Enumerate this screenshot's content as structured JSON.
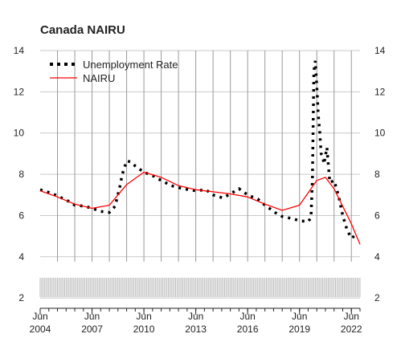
{
  "chart_data": {
    "type": "line",
    "title": "Canada NAIRU",
    "xlabel": "",
    "ylabel": "",
    "y_ticks": [
      "2",
      "4",
      "6",
      "8",
      "10",
      "12",
      "14"
    ],
    "x_ticks": [
      {
        "month": "Jun",
        "year": "2004"
      },
      {
        "month": "Jun",
        "year": "2007"
      },
      {
        "month": "Jun",
        "year": "2010"
      },
      {
        "month": "Jun",
        "year": "2013"
      },
      {
        "month": "Jun",
        "year": "2016"
      },
      {
        "month": "Jun",
        "year": "2019"
      },
      {
        "month": "Jun",
        "year": "2022"
      }
    ],
    "xlim": [
      "2004-06",
      "2022-12"
    ],
    "ylim": [
      1.5,
      14
    ],
    "grid": true,
    "legend_position": "top-left",
    "series": [
      {
        "name": "Unemployment Rate",
        "style": "dotted",
        "color": "#000000",
        "points": [
          [
            "2004-06",
            7.25
          ],
          [
            "2005-01",
            7.1
          ],
          [
            "2005-06",
            6.95
          ],
          [
            "2006-01",
            6.72
          ],
          [
            "2006-06",
            6.5
          ],
          [
            "2007-01",
            6.45
          ],
          [
            "2007-06",
            6.35
          ],
          [
            "2007-12",
            6.2
          ],
          [
            "2008-06",
            6.15
          ],
          [
            "2008-10",
            6.45
          ],
          [
            "2009-01",
            7.3
          ],
          [
            "2009-03",
            8.0
          ],
          [
            "2009-06",
            8.65
          ],
          [
            "2009-09",
            8.6
          ],
          [
            "2009-12",
            8.4
          ],
          [
            "2010-06",
            8.1
          ],
          [
            "2011-01",
            7.9
          ],
          [
            "2011-06",
            7.7
          ],
          [
            "2012-01",
            7.45
          ],
          [
            "2012-06",
            7.35
          ],
          [
            "2013-01",
            7.25
          ],
          [
            "2013-06",
            7.2
          ],
          [
            "2014-01",
            7.25
          ],
          [
            "2014-06",
            7.0
          ],
          [
            "2015-01",
            6.85
          ],
          [
            "2015-06",
            7.05
          ],
          [
            "2015-12",
            7.3
          ],
          [
            "2016-06",
            7.0
          ],
          [
            "2017-01",
            6.8
          ],
          [
            "2017-06",
            6.5
          ],
          [
            "2018-01",
            6.15
          ],
          [
            "2018-06",
            5.95
          ],
          [
            "2019-01",
            5.85
          ],
          [
            "2019-06",
            5.75
          ],
          [
            "2019-12",
            5.7
          ],
          [
            "2020-02",
            5.9
          ],
          [
            "2020-03",
            7.8
          ],
          [
            "2020-04",
            13.0
          ],
          [
            "2020-05",
            13.5
          ],
          [
            "2020-06",
            12.3
          ],
          [
            "2020-07",
            10.9
          ],
          [
            "2020-08",
            10.1
          ],
          [
            "2020-09",
            9.0
          ],
          [
            "2020-10",
            8.9
          ],
          [
            "2020-11",
            8.5
          ],
          [
            "2021-01",
            9.3
          ],
          [
            "2021-03",
            7.6
          ],
          [
            "2021-06",
            7.7
          ],
          [
            "2021-09",
            7.0
          ],
          [
            "2021-12",
            6.0
          ],
          [
            "2022-03",
            5.3
          ],
          [
            "2022-06",
            4.9
          ],
          [
            "2022-10",
            5.1
          ]
        ]
      },
      {
        "name": "NAIRU",
        "style": "solid",
        "color": "#ff0000",
        "points": [
          [
            "2004-06",
            7.2
          ],
          [
            "2005-06",
            6.9
          ],
          [
            "2006-06",
            6.55
          ],
          [
            "2007-06",
            6.35
          ],
          [
            "2008-06",
            6.5
          ],
          [
            "2009-06",
            7.5
          ],
          [
            "2010-06",
            8.1
          ],
          [
            "2011-06",
            7.85
          ],
          [
            "2012-06",
            7.45
          ],
          [
            "2013-06",
            7.25
          ],
          [
            "2014-06",
            7.15
          ],
          [
            "2015-06",
            7.05
          ],
          [
            "2016-06",
            6.9
          ],
          [
            "2017-06",
            6.55
          ],
          [
            "2018-06",
            6.25
          ],
          [
            "2019-06",
            6.5
          ],
          [
            "2020-06",
            7.7
          ],
          [
            "2020-12",
            7.85
          ],
          [
            "2021-06",
            7.3
          ],
          [
            "2022-06",
            5.6
          ],
          [
            "2022-12",
            4.6
          ]
        ]
      }
    ]
  }
}
